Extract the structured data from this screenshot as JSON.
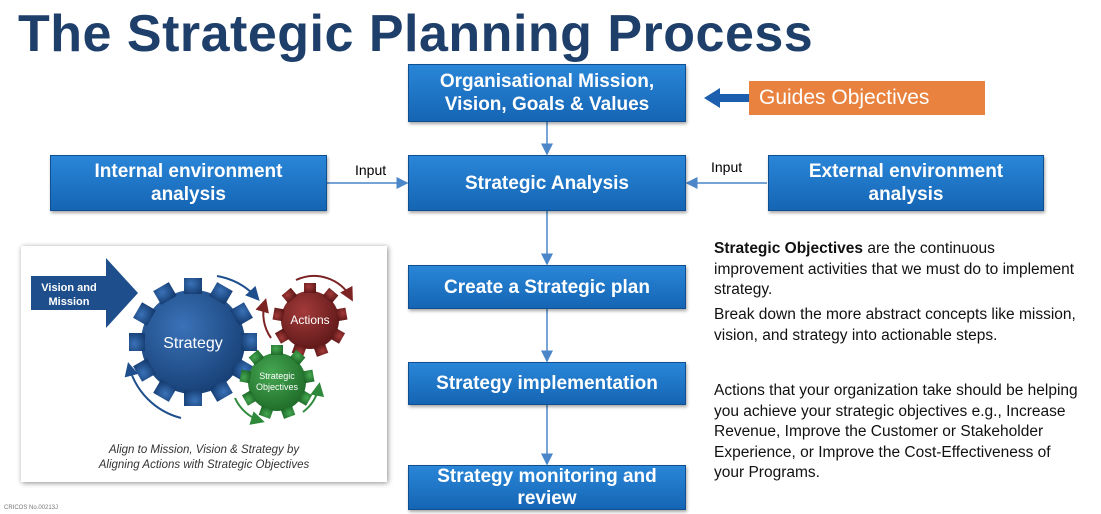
{
  "title": "The Strategic Planning Process",
  "boxes": {
    "mission": [
      "Organisational Mission,",
      "Vision, Goals & Values"
    ],
    "internal": [
      "Internal environment",
      "analysis"
    ],
    "analysis": "Strategic Analysis",
    "external": [
      "External environment",
      "analysis"
    ],
    "plan": "Create a Strategic plan",
    "implementation": "Strategy implementation",
    "monitoring": [
      "Strategy monitoring and",
      "review"
    ]
  },
  "guides": "Guides Objectives",
  "input_left": "Input",
  "input_right": "Input",
  "panel": {
    "arrow_text": [
      "Vision and",
      "Mission"
    ],
    "gear_strategy": "Strategy",
    "gear_actions": "Actions",
    "gear_objectives": [
      "Strategic",
      "Objectives"
    ],
    "caption": [
      "Align to Mission, Vision & Strategy by",
      "Aligning Actions with Strategic Objectives"
    ]
  },
  "text": {
    "p1_bold": "Strategic Objectives",
    "p1_rest": " are the continuous improvement activities that we must do to implement strategy.",
    "p2": "Break down the more abstract concepts like mission, vision, and strategy into actionable steps.",
    "p3": "Actions that your organization take should be helping you achieve your strategic objectives e.g., Increase Revenue, Improve the Customer or Stakeholder Experience, or Improve the Cost-Effectiveness of your Programs."
  },
  "cricos": "CRICOS No.00213J",
  "colors": {
    "title": "#1f3f6b",
    "box": "#1b6fc2",
    "orange": "#e8823e",
    "arrow": "#1b6fc2",
    "gear_blue": "#1e4f8c",
    "gear_red": "#7c2424",
    "gear_green": "#2e8a3a"
  }
}
